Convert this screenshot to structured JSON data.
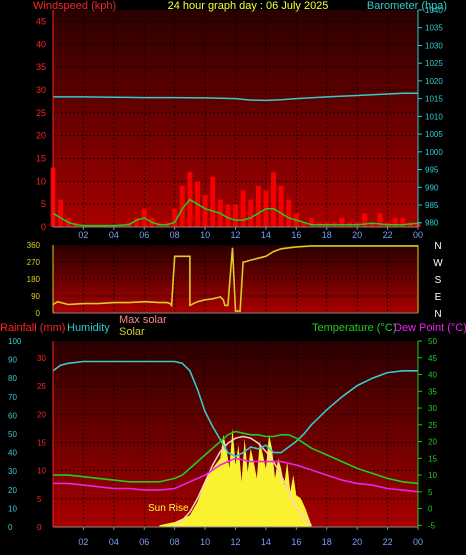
{
  "header": {
    "title": "24 hour graph day : 06 July 2025",
    "left_label": "Windspeed (kph)",
    "right_label": "Barometer (hpa)"
  },
  "lower_header": {
    "rainfall_label": "Rainfall (mm)",
    "humidity_label": "Humidity",
    "max_solar_label": "Max solar",
    "solar_label": "Solar",
    "temperature_label": "Temperature (°C)",
    "dewpoint_label": "Dew Point (°C)",
    "sunrise_label": "Sun Rise"
  },
  "colors": {
    "windspeed": "#ff0000",
    "gust": "#ff0000",
    "wind_avg": "#22cc22",
    "barometer": "#33cccc",
    "direction": "#ddcc22",
    "humidity": "#33cccc",
    "temperature": "#22cc22",
    "dewpoint": "#ee22ee",
    "solar": "#ffff33",
    "max_solar": "#ffcccc",
    "rainfall": "#ff0000"
  },
  "chart_data": [
    {
      "type": "line",
      "name": "wind-barometer",
      "x_ticks": [
        "02",
        "04",
        "06",
        "08",
        "10",
        "12",
        "14",
        "16",
        "18",
        "20",
        "22",
        "00"
      ],
      "y_left_ticks": [
        "0",
        "5",
        "10",
        "15",
        "20",
        "25",
        "30",
        "35",
        "40",
        "45"
      ],
      "y_right_ticks": [
        "980",
        "985",
        "990",
        "995",
        "1000",
        "1005",
        "1010",
        "1015",
        "1020",
        "1025",
        "1030",
        "1035",
        "1040"
      ],
      "ylim_left": [
        0,
        47.5
      ],
      "ylim_right": [
        978.8,
        1040
      ],
      "xlim": [
        0,
        24
      ],
      "series": [
        {
          "name": "Windspeed (kph)",
          "axis": "left",
          "kind": "bars",
          "x": [
            0,
            0.5,
            1,
            1.5,
            2,
            2.5,
            3,
            3.5,
            4,
            4.5,
            5,
            5.5,
            6,
            6.5,
            7,
            7.5,
            8,
            8.5,
            9,
            9.5,
            10,
            10.5,
            11,
            11.5,
            12,
            12.5,
            13,
            13.5,
            14,
            14.5,
            15,
            15.5,
            16,
            16.5,
            17,
            17.5,
            18,
            18.5,
            19,
            19.5,
            20,
            20.5,
            21,
            21.5,
            22,
            22.5,
            23,
            23.5,
            24
          ],
          "values": [
            13,
            6,
            2,
            1,
            0.5,
            0.5,
            0.3,
            0.5,
            0.3,
            0.3,
            1,
            2,
            4,
            2,
            1,
            1,
            4,
            9,
            12,
            10,
            7,
            11,
            6,
            5,
            5,
            8,
            6,
            9,
            8,
            12,
            9,
            6,
            3,
            1,
            2,
            1,
            1,
            1,
            2,
            1,
            1,
            3,
            1,
            3,
            1,
            2,
            2,
            1,
            1
          ]
        },
        {
          "name": "Wind average (kph)",
          "axis": "left",
          "kind": "line",
          "x": [
            0,
            0.5,
            1,
            1.5,
            2,
            3,
            4,
            5,
            5.5,
            6,
            6.5,
            7,
            7.5,
            8,
            8.5,
            9,
            9.5,
            10,
            10.5,
            11,
            11.5,
            12,
            12.5,
            13,
            13.5,
            14,
            14.5,
            15,
            15.5,
            16,
            16.5,
            17,
            18,
            19,
            20,
            21,
            22,
            23,
            24
          ],
          "values": [
            3,
            2,
            1,
            0.5,
            0.3,
            0.3,
            0.3,
            0.5,
            1.5,
            2,
            1,
            0.5,
            0.5,
            1,
            4,
            6,
            5,
            4,
            3.5,
            3,
            2,
            1.5,
            1.5,
            2,
            3,
            4,
            4,
            3,
            2,
            1.5,
            1,
            0.5,
            0.5,
            0.5,
            0.5,
            0.8,
            0.5,
            0.5,
            0.8
          ]
        },
        {
          "name": "Barometer (hpa)",
          "axis": "right",
          "x": [
            0,
            2,
            4,
            6,
            8,
            10,
            12,
            13,
            14,
            15,
            16,
            18,
            20,
            22,
            23,
            24
          ],
          "values": [
            1015.5,
            1015.5,
            1015.4,
            1015.3,
            1015.3,
            1015.2,
            1015,
            1014.6,
            1014.5,
            1014.7,
            1015.0,
            1015.5,
            1015.9,
            1016.3,
            1016.5,
            1016.5
          ]
        }
      ]
    },
    {
      "type": "line",
      "name": "wind-direction",
      "x_ticks": [
        "02",
        "04",
        "06",
        "08",
        "10",
        "12",
        "14",
        "16",
        "18",
        "20",
        "22",
        "00"
      ],
      "y_left_ticks": [
        "0",
        "90",
        "180",
        "270",
        "360"
      ],
      "y_right_ticks": [
        "N",
        "W",
        "S",
        "E",
        "N"
      ],
      "ylim": [
        0,
        360
      ],
      "xlim": [
        0,
        24
      ],
      "series": [
        {
          "name": "Wind direction (deg)",
          "x": [
            0,
            0.3,
            1,
            2,
            3,
            4,
            5,
            6,
            7,
            7.5,
            7.7,
            7.8,
            8,
            8.5,
            9,
            9,
            9.5,
            10,
            10.5,
            11,
            11.2,
            11.3,
            11.5,
            11.8,
            12,
            12.3,
            12.5,
            12.6,
            13,
            13.5,
            14,
            14.5,
            15,
            15.5,
            16,
            17,
            18,
            19,
            20,
            22,
            24
          ],
          "values": [
            45,
            60,
            45,
            50,
            50,
            55,
            55,
            60,
            55,
            55,
            50,
            40,
            300,
            300,
            300,
            40,
            60,
            70,
            75,
            85,
            70,
            40,
            40,
            345,
            10,
            10,
            270,
            270,
            280,
            290,
            300,
            325,
            340,
            345,
            350,
            355,
            355,
            355,
            355,
            355,
            355
          ]
        }
      ]
    },
    {
      "type": "line",
      "name": "temperature-humidity-solar",
      "x_ticks": [
        "02",
        "04",
        "06",
        "08",
        "10",
        "12",
        "14",
        "16",
        "18",
        "20",
        "22",
        "00"
      ],
      "y_rain_ticks": [
        "0",
        "5",
        "10",
        "15",
        "20",
        "25",
        "30"
      ],
      "y_humidity_ticks": [
        "0",
        "10",
        "20",
        "30",
        "40",
        "50",
        "60",
        "70",
        "80",
        "90",
        "100"
      ],
      "y_temp_ticks": [
        "-5",
        "0",
        "5",
        "10",
        "15",
        "20",
        "25",
        "30",
        "35",
        "40",
        "45",
        "50"
      ],
      "ylim_humidity": [
        0,
        100
      ],
      "ylim_temp": [
        -5.5,
        50
      ],
      "xlim": [
        0,
        24
      ],
      "series": [
        {
          "name": "Humidity",
          "axis": "humidity",
          "x": [
            0,
            0.5,
            1,
            2,
            3,
            4,
            5,
            6,
            7,
            8,
            8.5,
            9,
            9.5,
            10,
            10.5,
            11,
            11.5,
            12,
            12.5,
            13,
            13.5,
            14,
            14.5,
            15,
            15.5,
            16,
            16.5,
            17,
            17.5,
            18,
            19,
            20,
            21,
            22,
            23,
            24
          ],
          "values": [
            84,
            87,
            88,
            89,
            89,
            89,
            89,
            89,
            89,
            89,
            88,
            84,
            74,
            62,
            54,
            47,
            40,
            38,
            40,
            43,
            42,
            44,
            40,
            40,
            43,
            46,
            50,
            55,
            59,
            63,
            70,
            76,
            80,
            83,
            84,
            84
          ]
        },
        {
          "name": "Temperature (°C)",
          "axis": "temp",
          "x": [
            0,
            1,
            2,
            3,
            4,
            5,
            6,
            7,
            7.5,
            8,
            8.5,
            9,
            9.5,
            10,
            10.5,
            11,
            11.5,
            12,
            12.5,
            13,
            13.5,
            14,
            14.5,
            15,
            15.5,
            16,
            16.5,
            17,
            18,
            19,
            20,
            21,
            22,
            23,
            24
          ],
          "values": [
            10,
            10,
            9.5,
            9,
            8.5,
            8,
            8,
            8,
            8.5,
            9,
            10,
            12,
            14,
            16,
            18,
            20,
            22,
            23,
            22.5,
            22,
            22,
            21.5,
            21.5,
            22,
            22,
            21,
            19.5,
            18,
            16,
            14,
            12,
            10.5,
            9,
            8,
            7.5
          ]
        },
        {
          "name": "Dew Point (°C)",
          "axis": "temp",
          "x": [
            0,
            1,
            2,
            3,
            4,
            5,
            6,
            7,
            8,
            9,
            10,
            10.5,
            11,
            11.5,
            12,
            13,
            14,
            15,
            16,
            17,
            18,
            19,
            20,
            21,
            22,
            23,
            24
          ],
          "values": [
            7.5,
            7.5,
            7,
            6.5,
            6,
            6,
            5.5,
            5.5,
            6,
            8,
            10,
            11.5,
            13,
            14,
            15,
            14,
            14,
            14,
            13,
            11.5,
            10,
            8.5,
            7.5,
            7,
            6,
            5.5,
            5
          ]
        },
        {
          "name": "Solar",
          "axis": "temp",
          "kind": "area",
          "x": [
            7,
            7.5,
            8,
            8.5,
            9,
            9.5,
            10,
            10.5,
            11,
            11.2,
            11.4,
            11.6,
            11.8,
            12,
            12.2,
            12.4,
            12.6,
            12.8,
            13,
            13.2,
            13.4,
            13.6,
            13.8,
            14,
            14.2,
            14.4,
            14.6,
            14.8,
            15,
            15.2,
            15.4,
            15.6,
            15.8,
            16,
            16.3,
            16.6,
            17
          ],
          "values": [
            -5,
            -4.5,
            -4,
            -3,
            -2,
            2,
            8,
            12,
            15,
            22,
            18,
            12,
            24,
            13,
            19,
            8,
            21,
            11,
            18,
            14,
            9,
            20,
            16,
            12,
            22,
            18,
            9,
            15,
            12,
            7,
            14,
            5,
            10,
            4,
            3,
            0,
            -5
          ]
        },
        {
          "name": "Max solar",
          "axis": "temp",
          "x": [
            8,
            8.5,
            9,
            9.5,
            10,
            10.5,
            11,
            11.5,
            12,
            12.5,
            13,
            13.5,
            14,
            14.5,
            15,
            15.5,
            16,
            16.5,
            17
          ],
          "values": [
            -5,
            -3.5,
            -1,
            3,
            8,
            13,
            17,
            19.5,
            21,
            21.5,
            21,
            19.5,
            17,
            14,
            10,
            5,
            0,
            -3,
            -5
          ]
        }
      ]
    }
  ]
}
